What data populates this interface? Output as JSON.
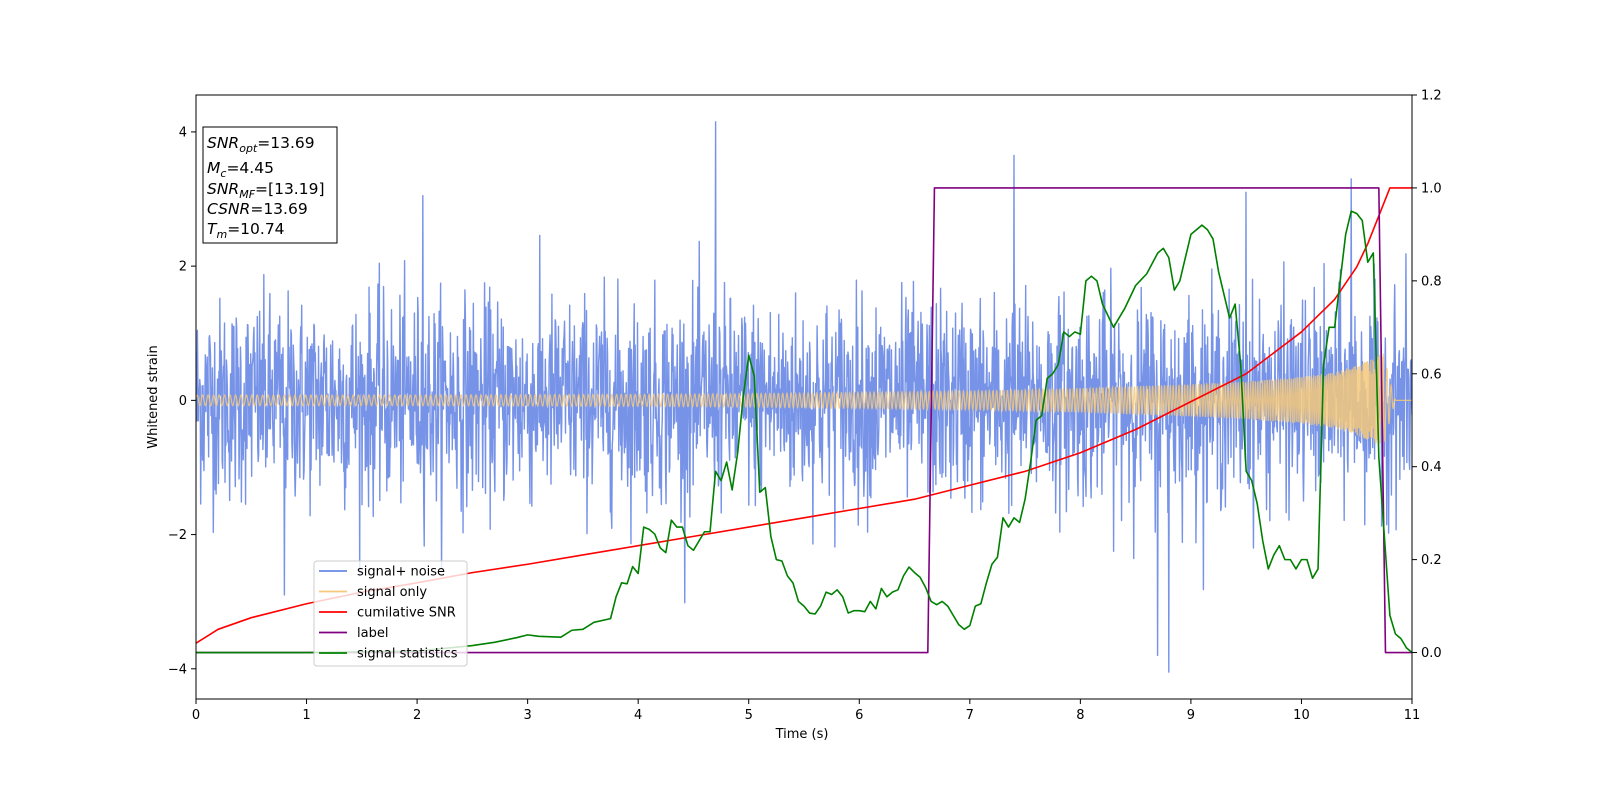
{
  "chart_data": {
    "type": "line",
    "xlabel": "Time (s)",
    "ylabel": "Whitened strain",
    "xlim": [
      0,
      11
    ],
    "ylim": [
      -4.45,
      4.55
    ],
    "y2lim": [
      -0.1,
      1.2
    ],
    "xticks": [
      "0",
      "1",
      "2",
      "3",
      "4",
      "5",
      "6",
      "7",
      "8",
      "9",
      "10",
      "11"
    ],
    "yticks": [
      "−4",
      "−2",
      "0",
      "2",
      "4"
    ],
    "y2ticks": [
      "0.0",
      "0.2",
      "0.4",
      "0.6",
      "0.8",
      "1.0",
      "1.2"
    ],
    "grid": false,
    "annotation": {
      "lines": [
        {
          "sym": "SNR",
          "sub": "opt",
          "val": "=13.69"
        },
        {
          "sym": "M",
          "sub": "c",
          "val": "=4.45"
        },
        {
          "sym": "SNR",
          "sub": "MF",
          "val": "=[13.19]"
        },
        {
          "sym": "CSNR",
          "sub": "",
          "val": "=13.69"
        },
        {
          "sym": "T",
          "sub": "m",
          "val": "=10.74"
        }
      ]
    },
    "legend": {
      "placement": "lower-left",
      "entries": [
        {
          "label": "signal+ noise",
          "color": "#6a8ae6"
        },
        {
          "label": "signal only",
          "color": "#f5c87a"
        },
        {
          "label": "cumilative SNR",
          "color": "#ff0000"
        },
        {
          "label": "label",
          "color": "#800080"
        },
        {
          "label": "signal statistics",
          "color": "#008000"
        }
      ]
    },
    "series": [
      {
        "name": "signal+ noise",
        "axis": "left",
        "color": "#7693e8",
        "style": "noise",
        "amplitude": 0.75,
        "t_start": 0,
        "t_end": 11,
        "peaks": [
          [
            4.7,
            4.15
          ],
          [
            7.4,
            3.65
          ],
          [
            10.45,
            3.3
          ],
          [
            2.05,
            3.05
          ],
          [
            9.5,
            3.1
          ],
          [
            8.8,
            -4.05
          ],
          [
            8.7,
            -3.8
          ],
          [
            0.8,
            -2.9
          ]
        ]
      },
      {
        "name": "signal only",
        "axis": "left",
        "color": "#f5c87a",
        "style": "chirp",
        "t_start": 0,
        "t_merge": 10.74,
        "envelope": [
          [
            0,
            0.08
          ],
          [
            1,
            0.08
          ],
          [
            2,
            0.08
          ],
          [
            3,
            0.085
          ],
          [
            4,
            0.09
          ],
          [
            5,
            0.1
          ],
          [
            6,
            0.12
          ],
          [
            7,
            0.14
          ],
          [
            8,
            0.18
          ],
          [
            9,
            0.24
          ],
          [
            9.5,
            0.28
          ],
          [
            10,
            0.35
          ],
          [
            10.3,
            0.42
          ],
          [
            10.5,
            0.52
          ],
          [
            10.65,
            0.62
          ],
          [
            10.74,
            0.72
          ],
          [
            10.8,
            0.3
          ],
          [
            10.85,
            0.0
          ],
          [
            11,
            0.0
          ]
        ]
      },
      {
        "name": "cumilative SNR",
        "axis": "right",
        "color": "#ff0000",
        "points": [
          [
            0,
            0.02
          ],
          [
            0.2,
            0.05
          ],
          [
            0.5,
            0.075
          ],
          [
            1,
            0.105
          ],
          [
            1.5,
            0.13
          ],
          [
            2,
            0.15
          ],
          [
            2.5,
            0.172
          ],
          [
            3,
            0.19
          ],
          [
            3.5,
            0.21
          ],
          [
            4,
            0.23
          ],
          [
            4.5,
            0.25
          ],
          [
            5,
            0.27
          ],
          [
            5.5,
            0.29
          ],
          [
            6,
            0.31
          ],
          [
            6.5,
            0.33
          ],
          [
            7,
            0.36
          ],
          [
            7.5,
            0.39
          ],
          [
            8,
            0.43
          ],
          [
            8.5,
            0.48
          ],
          [
            9,
            0.54
          ],
          [
            9.5,
            0.6
          ],
          [
            10,
            0.69
          ],
          [
            10.3,
            0.76
          ],
          [
            10.5,
            0.83
          ],
          [
            10.6,
            0.88
          ],
          [
            10.7,
            0.94
          ],
          [
            10.8,
            1.0
          ],
          [
            11,
            1.0
          ]
        ]
      },
      {
        "name": "label",
        "axis": "right",
        "color": "#800080",
        "points": [
          [
            0,
            0.0
          ],
          [
            6.62,
            0.0
          ],
          [
            6.68,
            1.0
          ],
          [
            10.7,
            1.0
          ],
          [
            10.76,
            0.0
          ],
          [
            11,
            0.0
          ]
        ]
      },
      {
        "name": "signal statistics",
        "axis": "right",
        "color": "#008000",
        "points": [
          [
            0,
            0.0
          ],
          [
            1.0,
            0.0
          ],
          [
            2.0,
            0.003
          ],
          [
            2.5,
            0.015
          ],
          [
            2.7,
            0.022
          ],
          [
            2.9,
            0.032
          ],
          [
            3.0,
            0.038
          ],
          [
            3.1,
            0.035
          ],
          [
            3.3,
            0.033
          ],
          [
            3.4,
            0.048
          ],
          [
            3.5,
            0.05
          ],
          [
            3.6,
            0.065
          ],
          [
            3.75,
            0.073
          ],
          [
            3.8,
            0.12
          ],
          [
            3.85,
            0.15
          ],
          [
            3.9,
            0.148
          ],
          [
            3.95,
            0.185
          ],
          [
            4.0,
            0.17
          ],
          [
            4.05,
            0.27
          ],
          [
            4.1,
            0.265
          ],
          [
            4.15,
            0.255
          ],
          [
            4.2,
            0.225
          ],
          [
            4.25,
            0.215
          ],
          [
            4.3,
            0.285
          ],
          [
            4.35,
            0.27
          ],
          [
            4.4,
            0.27
          ],
          [
            4.45,
            0.23
          ],
          [
            4.5,
            0.22
          ],
          [
            4.6,
            0.26
          ],
          [
            4.65,
            0.26
          ],
          [
            4.7,
            0.39
          ],
          [
            4.75,
            0.37
          ],
          [
            4.8,
            0.41
          ],
          [
            4.85,
            0.35
          ],
          [
            4.9,
            0.43
          ],
          [
            4.95,
            0.55
          ],
          [
            5.0,
            0.64
          ],
          [
            5.05,
            0.595
          ],
          [
            5.1,
            0.345
          ],
          [
            5.15,
            0.355
          ],
          [
            5.2,
            0.25
          ],
          [
            5.25,
            0.2
          ],
          [
            5.3,
            0.197
          ],
          [
            5.35,
            0.165
          ],
          [
            5.4,
            0.15
          ],
          [
            5.45,
            0.11
          ],
          [
            5.5,
            0.1
          ],
          [
            5.55,
            0.085
          ],
          [
            5.6,
            0.083
          ],
          [
            5.65,
            0.1
          ],
          [
            5.7,
            0.13
          ],
          [
            5.75,
            0.125
          ],
          [
            5.8,
            0.135
          ],
          [
            5.85,
            0.12
          ],
          [
            5.9,
            0.085
          ],
          [
            5.95,
            0.09
          ],
          [
            6.0,
            0.09
          ],
          [
            6.05,
            0.088
          ],
          [
            6.1,
            0.11
          ],
          [
            6.15,
            0.094
          ],
          [
            6.2,
            0.138
          ],
          [
            6.25,
            0.12
          ],
          [
            6.3,
            0.13
          ],
          [
            6.35,
            0.135
          ],
          [
            6.4,
            0.165
          ],
          [
            6.45,
            0.184
          ],
          [
            6.5,
            0.172
          ],
          [
            6.55,
            0.162
          ],
          [
            6.6,
            0.14
          ],
          [
            6.65,
            0.11
          ],
          [
            6.7,
            0.103
          ],
          [
            6.75,
            0.11
          ],
          [
            6.8,
            0.1
          ],
          [
            6.85,
            0.08
          ],
          [
            6.9,
            0.06
          ],
          [
            6.95,
            0.05
          ],
          [
            7.0,
            0.058
          ],
          [
            7.05,
            0.1
          ],
          [
            7.1,
            0.105
          ],
          [
            7.15,
            0.15
          ],
          [
            7.2,
            0.19
          ],
          [
            7.25,
            0.205
          ],
          [
            7.3,
            0.29
          ],
          [
            7.35,
            0.27
          ],
          [
            7.4,
            0.29
          ],
          [
            7.45,
            0.28
          ],
          [
            7.5,
            0.33
          ],
          [
            7.55,
            0.41
          ],
          [
            7.6,
            0.5
          ],
          [
            7.65,
            0.51
          ],
          [
            7.7,
            0.59
          ],
          [
            7.75,
            0.6
          ],
          [
            7.8,
            0.62
          ],
          [
            7.85,
            0.69
          ],
          [
            7.9,
            0.68
          ],
          [
            7.95,
            0.69
          ],
          [
            8.0,
            0.685
          ],
          [
            8.05,
            0.8
          ],
          [
            8.1,
            0.81
          ],
          [
            8.15,
            0.8
          ],
          [
            8.2,
            0.75
          ],
          [
            8.3,
            0.7
          ],
          [
            8.4,
            0.74
          ],
          [
            8.5,
            0.79
          ],
          [
            8.6,
            0.815
          ],
          [
            8.7,
            0.86
          ],
          [
            8.75,
            0.87
          ],
          [
            8.8,
            0.85
          ],
          [
            8.85,
            0.78
          ],
          [
            8.9,
            0.8
          ],
          [
            8.95,
            0.85
          ],
          [
            9.0,
            0.9
          ],
          [
            9.1,
            0.92
          ],
          [
            9.15,
            0.91
          ],
          [
            9.2,
            0.89
          ],
          [
            9.25,
            0.82
          ],
          [
            9.3,
            0.77
          ],
          [
            9.35,
            0.72
          ],
          [
            9.4,
            0.75
          ],
          [
            9.45,
            0.62
          ],
          [
            9.5,
            0.39
          ],
          [
            9.55,
            0.37
          ],
          [
            9.6,
            0.32
          ],
          [
            9.65,
            0.24
          ],
          [
            9.7,
            0.18
          ],
          [
            9.75,
            0.21
          ],
          [
            9.8,
            0.23
          ],
          [
            9.85,
            0.2
          ],
          [
            9.9,
            0.2
          ],
          [
            9.95,
            0.18
          ],
          [
            10.0,
            0.2
          ],
          [
            10.05,
            0.2
          ],
          [
            10.1,
            0.16
          ],
          [
            10.15,
            0.18
          ],
          [
            10.2,
            0.62
          ],
          [
            10.25,
            0.7
          ],
          [
            10.3,
            0.7
          ],
          [
            10.35,
            0.8
          ],
          [
            10.4,
            0.9
          ],
          [
            10.45,
            0.95
          ],
          [
            10.5,
            0.945
          ],
          [
            10.55,
            0.93
          ],
          [
            10.6,
            0.84
          ],
          [
            10.65,
            0.86
          ],
          [
            10.7,
            0.42
          ],
          [
            10.75,
            0.25
          ],
          [
            10.8,
            0.08
          ],
          [
            10.85,
            0.04
          ],
          [
            10.9,
            0.03
          ],
          [
            10.95,
            0.01
          ],
          [
            11.0,
            0.0
          ]
        ]
      }
    ]
  }
}
